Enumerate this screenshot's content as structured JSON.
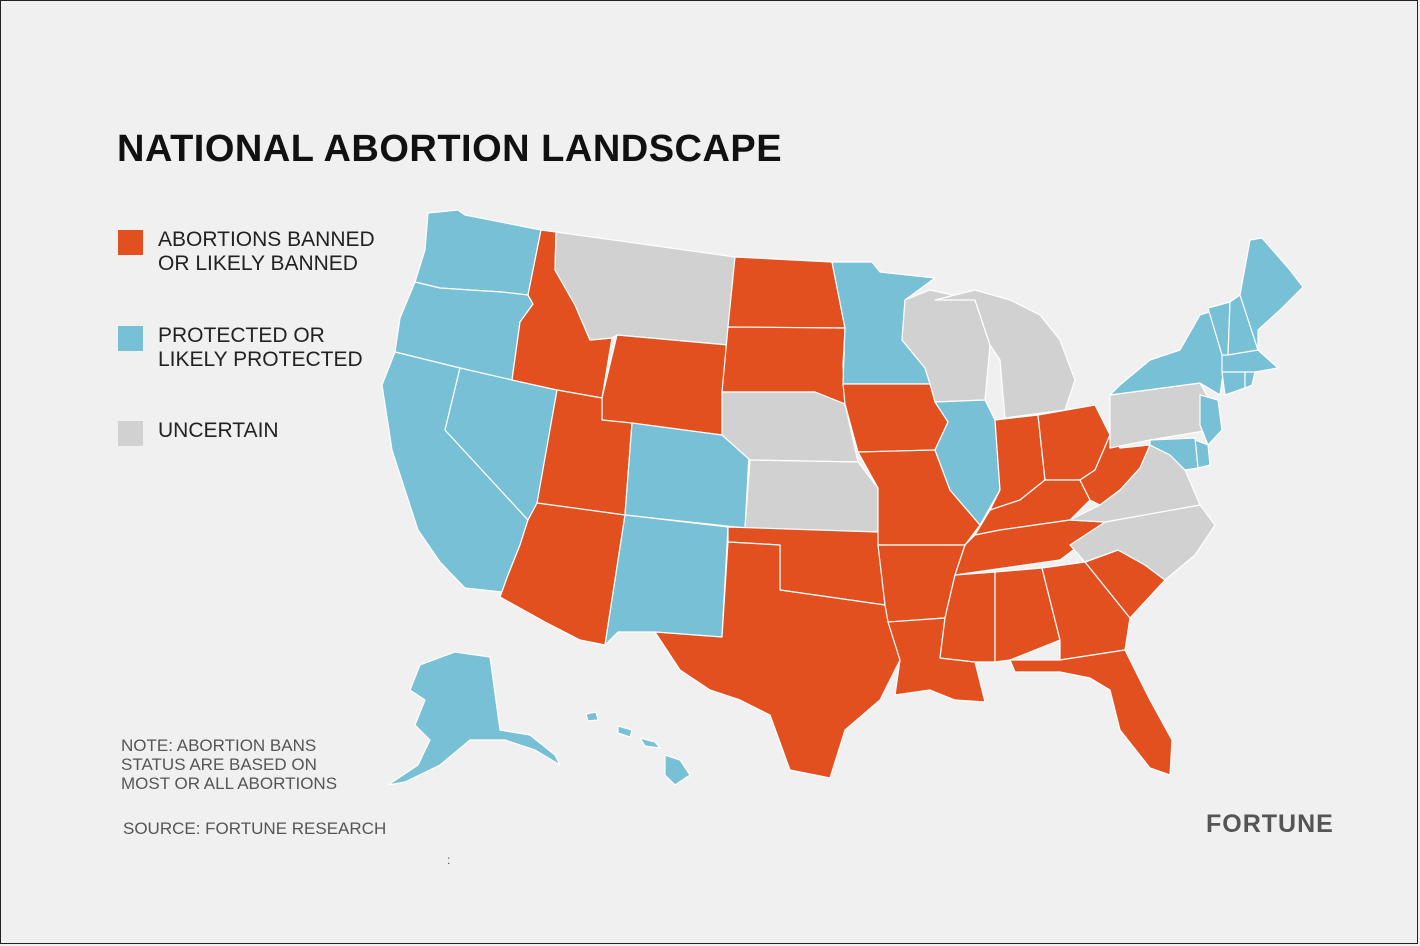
{
  "title": "NATIONAL ABORTION LANDSCAPE",
  "legend": [
    {
      "line1": "ABORTIONS BANNED",
      "line2": "OR LIKELY BANNED",
      "color": "#e2501f"
    },
    {
      "line1": "PROTECTED OR",
      "line2": "LIKELY PROTECTED",
      "color": "#78c0d6"
    },
    {
      "line1": "UNCERTAIN",
      "line2": "",
      "color": "#d1d1d1"
    }
  ],
  "note": [
    "NOTE: ABORTION BANS",
    "STATUS ARE BASED ON",
    "MOST OR ALL ABORTIONS"
  ],
  "source": "SOURCE: FORTUNE RESEARCH",
  "brand": "FORTUNE",
  "colors": {
    "banned": "#e2501f",
    "protected": "#78c0d6",
    "uncertain": "#d1d1d1"
  },
  "states": {
    "WA": "protected",
    "OR": "protected",
    "CA": "protected",
    "NV": "protected",
    "CO": "protected",
    "NM": "protected",
    "MN": "protected",
    "IL": "protected",
    "NY": "protected",
    "VT": "protected",
    "NH": "protected",
    "ME": "protected",
    "MA": "protected",
    "RI": "protected",
    "CT": "protected",
    "NJ": "protected",
    "DE": "protected",
    "MD": "protected",
    "AK": "protected",
    "HI": "protected",
    "ID": "banned",
    "UT": "banned",
    "AZ": "banned",
    "WY": "banned",
    "ND": "banned",
    "SD": "banned",
    "OK": "banned",
    "TX": "banned",
    "IA": "banned",
    "MO": "banned",
    "AR": "banned",
    "LA": "banned",
    "MS": "banned",
    "AL": "banned",
    "GA": "banned",
    "SC": "banned",
    "FL": "banned",
    "TN": "banned",
    "KY": "banned",
    "IN": "banned",
    "OH": "banned",
    "WV": "banned",
    "MT": "uncertain",
    "NE": "uncertain",
    "KS": "uncertain",
    "WI": "uncertain",
    "MI": "uncertain",
    "PA": "uncertain",
    "VA": "uncertain",
    "NC": "uncertain"
  }
}
